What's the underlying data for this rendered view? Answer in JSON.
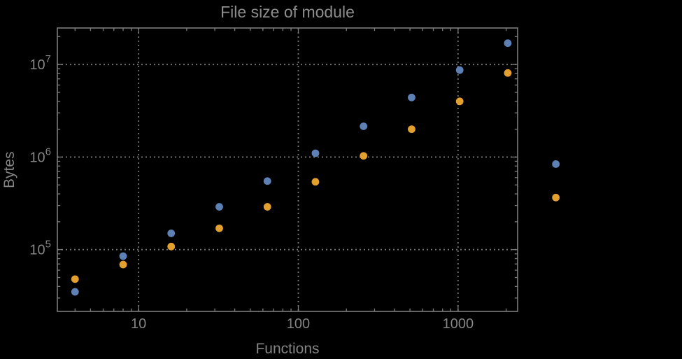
{
  "chart_data": {
    "type": "scatter",
    "title": "File size of module",
    "xlabel": "Functions",
    "ylabel": "Bytes",
    "x_scale": "log",
    "y_scale": "log",
    "xlim": [
      3.1,
      2360
    ],
    "ylim": [
      21500,
      24800000
    ],
    "x_ticks": [
      10,
      100,
      1000
    ],
    "x_tick_labels": [
      "10",
      "100",
      "1000"
    ],
    "y_ticks": [
      100000,
      1000000,
      10000000
    ],
    "y_tick_labels": [
      {
        "base": "10",
        "exp": "5"
      },
      {
        "base": "10",
        "exp": "6"
      },
      {
        "base": "10",
        "exp": "7"
      }
    ],
    "grid": "dotted-at-major-ticks",
    "legend": "none",
    "x": [
      4,
      8,
      16,
      32,
      64,
      128,
      256,
      512,
      1024,
      2048,
      4096
    ],
    "series": [
      {
        "name": "series-1-blue",
        "color": "#5E81B5",
        "values": [
          35000,
          85000,
          150000,
          290000,
          550000,
          1100000,
          2150000,
          4400000,
          8700000,
          17000000,
          840000
        ]
      },
      {
        "name": "series-2-orange",
        "color": "#E3A02F",
        "values": [
          48000,
          69000,
          108000,
          170000,
          290000,
          540000,
          1030000,
          2000000,
          4000000,
          8100000,
          365000
        ]
      }
    ]
  },
  "style": {
    "background": "#000000",
    "frame_color": "#7c7c7c",
    "tick_color": "#7c7c7c",
    "grid_color": "#747474",
    "text_color": "#848484",
    "title_color": "#8d8d8d"
  }
}
